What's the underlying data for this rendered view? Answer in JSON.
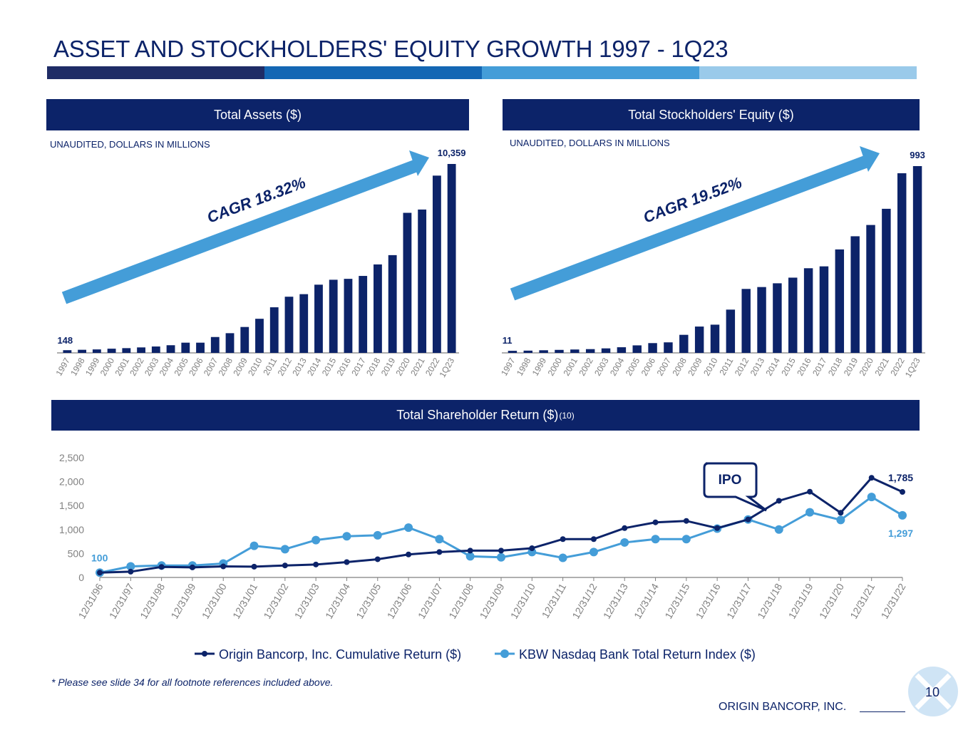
{
  "page": {
    "title": "ASSET AND STOCKHOLDERS' EQUITY GROWTH 1997 - 1Q23",
    "page_number": "10",
    "company": "ORIGIN BANCORP, INC.",
    "footnote": "* Please see slide 34 for all footnote references included above.",
    "brand_colors": [
      "#0c2369",
      "#1467b4",
      "#449dd8",
      "#9acaea"
    ]
  },
  "panels": {
    "assets": {
      "header": "Total Assets ($)",
      "unit_note": "UNAUDITED, DOLLARS IN MILLIONS",
      "cagr_label": "CAGR 18.32%"
    },
    "equity": {
      "header": "Total Stockholders' Equity ($)",
      "unit_note": "UNAUDITED, DOLLARS IN MILLIONS",
      "cagr_label": "CAGR 19.52%"
    },
    "tsr": {
      "header": "Total Shareholder Return ($)",
      "header_sup": "(10)",
      "callout": "IPO"
    }
  },
  "chart_data": [
    {
      "type": "bar",
      "title": "Total Assets ($)",
      "categories": [
        "1997",
        "1998",
        "1999",
        "2000",
        "2001",
        "2002",
        "2003",
        "2004",
        "2005",
        "2006",
        "2007",
        "2008",
        "2009",
        "2010",
        "2011",
        "2012",
        "2013",
        "2014",
        "2015",
        "2016",
        "2017",
        "2018",
        "2019",
        "2020",
        "2021",
        "2022",
        "1Q23"
      ],
      "values": [
        148,
        170,
        190,
        230,
        260,
        300,
        350,
        420,
        560,
        560,
        870,
        1080,
        1420,
        1870,
        2500,
        3080,
        3220,
        3740,
        4010,
        4060,
        4220,
        4850,
        5360,
        7680,
        7860,
        9720,
        10359
      ],
      "data_labels": {
        "first": "148",
        "last": "10,359"
      },
      "ylim": [
        0,
        10359
      ],
      "color": "#0c2369",
      "grid": false
    },
    {
      "type": "bar",
      "title": "Total Stockholders' Equity ($)",
      "categories": [
        "1997",
        "1998",
        "1999",
        "2000",
        "2001",
        "2002",
        "2003",
        "2004",
        "2005",
        "2006",
        "2007",
        "2008",
        "2009",
        "2010",
        "2011",
        "2012",
        "2013",
        "2014",
        "2015",
        "2016",
        "2017",
        "2018",
        "2019",
        "2020",
        "2021",
        "2022",
        "1Q23"
      ],
      "values": [
        11,
        12,
        14,
        16,
        18,
        20,
        24,
        30,
        40,
        52,
        56,
        96,
        140,
        150,
        230,
        340,
        350,
        370,
        400,
        450,
        460,
        550,
        620,
        680,
        766,
        955,
        993
      ],
      "data_labels": {
        "first": "11",
        "last": "993"
      },
      "ylim": [
        0,
        993
      ],
      "color": "#0c2369",
      "grid": false
    },
    {
      "type": "line",
      "title": "Total Shareholder Return ($)",
      "categories": [
        "12/31/96",
        "12/31/97",
        "12/31/98",
        "12/31/99",
        "12/31/00",
        "12/31/01",
        "12/31/02",
        "12/31/03",
        "12/31/04",
        "12/31/05",
        "12/31/06",
        "12/31/07",
        "12/31/08",
        "12/31/09",
        "12/31/10",
        "12/31/11",
        "12/31/12",
        "12/31/13",
        "12/31/14",
        "12/31/15",
        "12/31/16",
        "12/31/17",
        "12/31/18",
        "12/31/19",
        "12/31/20",
        "12/31/21",
        "12/31/22"
      ],
      "yticks": [
        "0",
        "500",
        "1,000",
        "1,500",
        "2,000",
        "2,500"
      ],
      "ylim": [
        0,
        2500
      ],
      "series": [
        {
          "name": "Origin Bancorp, Inc. Cumulative Return ($)",
          "color": "#0c2369",
          "values": [
            100,
            120,
            220,
            210,
            230,
            225,
            250,
            270,
            320,
            380,
            480,
            530,
            560,
            560,
            610,
            800,
            800,
            1030,
            1150,
            1180,
            1030,
            1210,
            1600,
            1790,
            1350,
            2080,
            1785
          ],
          "end_label": "1,785"
        },
        {
          "name": "KBW Nasdaq Bank Total Return Index ($)",
          "color": "#449dd8",
          "values": [
            100,
            230,
            250,
            250,
            290,
            660,
            590,
            780,
            860,
            880,
            1040,
            800,
            440,
            420,
            530,
            410,
            530,
            730,
            800,
            800,
            1020,
            1210,
            1000,
            1360,
            1200,
            1680,
            1297
          ],
          "start_label": "100",
          "end_label": "1,297"
        }
      ],
      "legend_position": "bottom",
      "grid": false
    }
  ]
}
